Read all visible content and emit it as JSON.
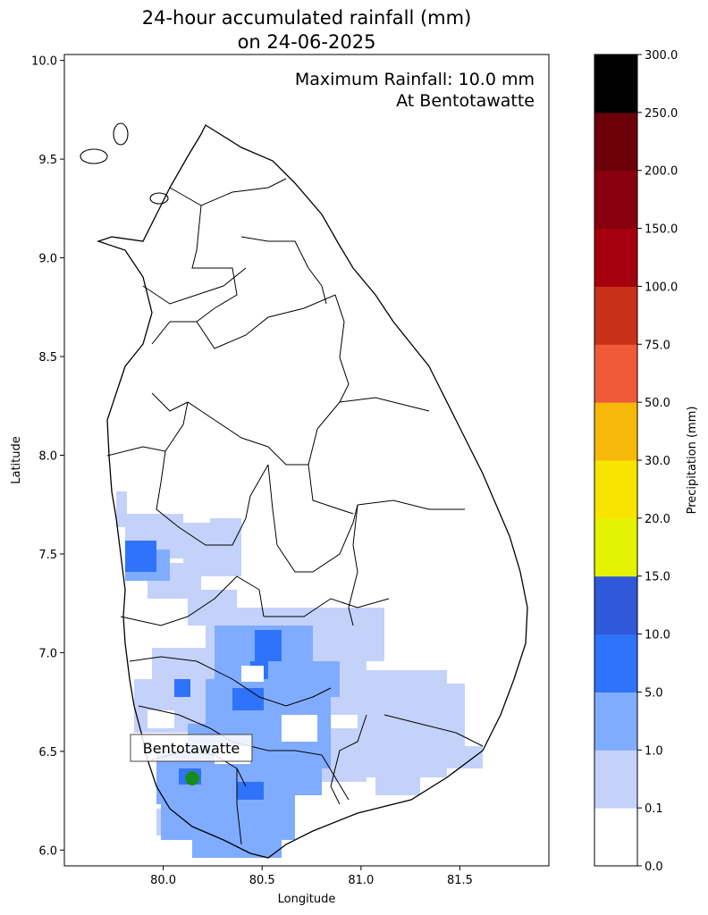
{
  "title_line1": "24-hour accumulated rainfall (mm)",
  "title_line2": "on 24-06-2025",
  "annotation_line1": "Maximum Rainfall: 10.0 mm",
  "annotation_line2": "At Bentotawatte",
  "marker_label": "Bentotawatte",
  "marker": {
    "lon": 80.16,
    "lat": 6.35,
    "color": "#1a8a1a"
  },
  "axes": {
    "xlabel": "Longitude",
    "ylabel": "Latitude",
    "xlim": [
      79.5,
      81.95
    ],
    "ylim": [
      5.92,
      10.03
    ],
    "xticks": [
      "80.0",
      "80.5",
      "81.0",
      "81.5"
    ],
    "xtick_values": [
      80.0,
      80.5,
      81.0,
      81.5
    ],
    "yticks": [
      "6.0",
      "6.5",
      "7.0",
      "7.5",
      "8.0",
      "8.5",
      "9.0",
      "9.5",
      "10.0"
    ],
    "ytick_values": [
      6.0,
      6.5,
      7.0,
      7.5,
      8.0,
      8.5,
      9.0,
      9.5,
      10.0
    ]
  },
  "colorbar": {
    "label": "Precipitation (mm)",
    "ticks": [
      "0.0",
      "0.1",
      "1.0",
      "5.0",
      "10.0",
      "15.0",
      "20.0",
      "30.0",
      "50.0",
      "75.0",
      "100.0",
      "150.0",
      "200.0",
      "250.0",
      "300.0"
    ],
    "colors": [
      "#ffffff",
      "#c4d2fa",
      "#80acff",
      "#2f73fb",
      "#2f59d9",
      "#e4f204",
      "#f8e400",
      "#f6b90a",
      "#f15a38",
      "#c93018",
      "#a4000e",
      "#88000d",
      "#6b0008",
      "#000000"
    ]
  },
  "rain_colors": {
    "light": "#c4d2fa",
    "medium": "#80acff",
    "heavy": "#2f73fb"
  },
  "country": "Sri Lanka"
}
